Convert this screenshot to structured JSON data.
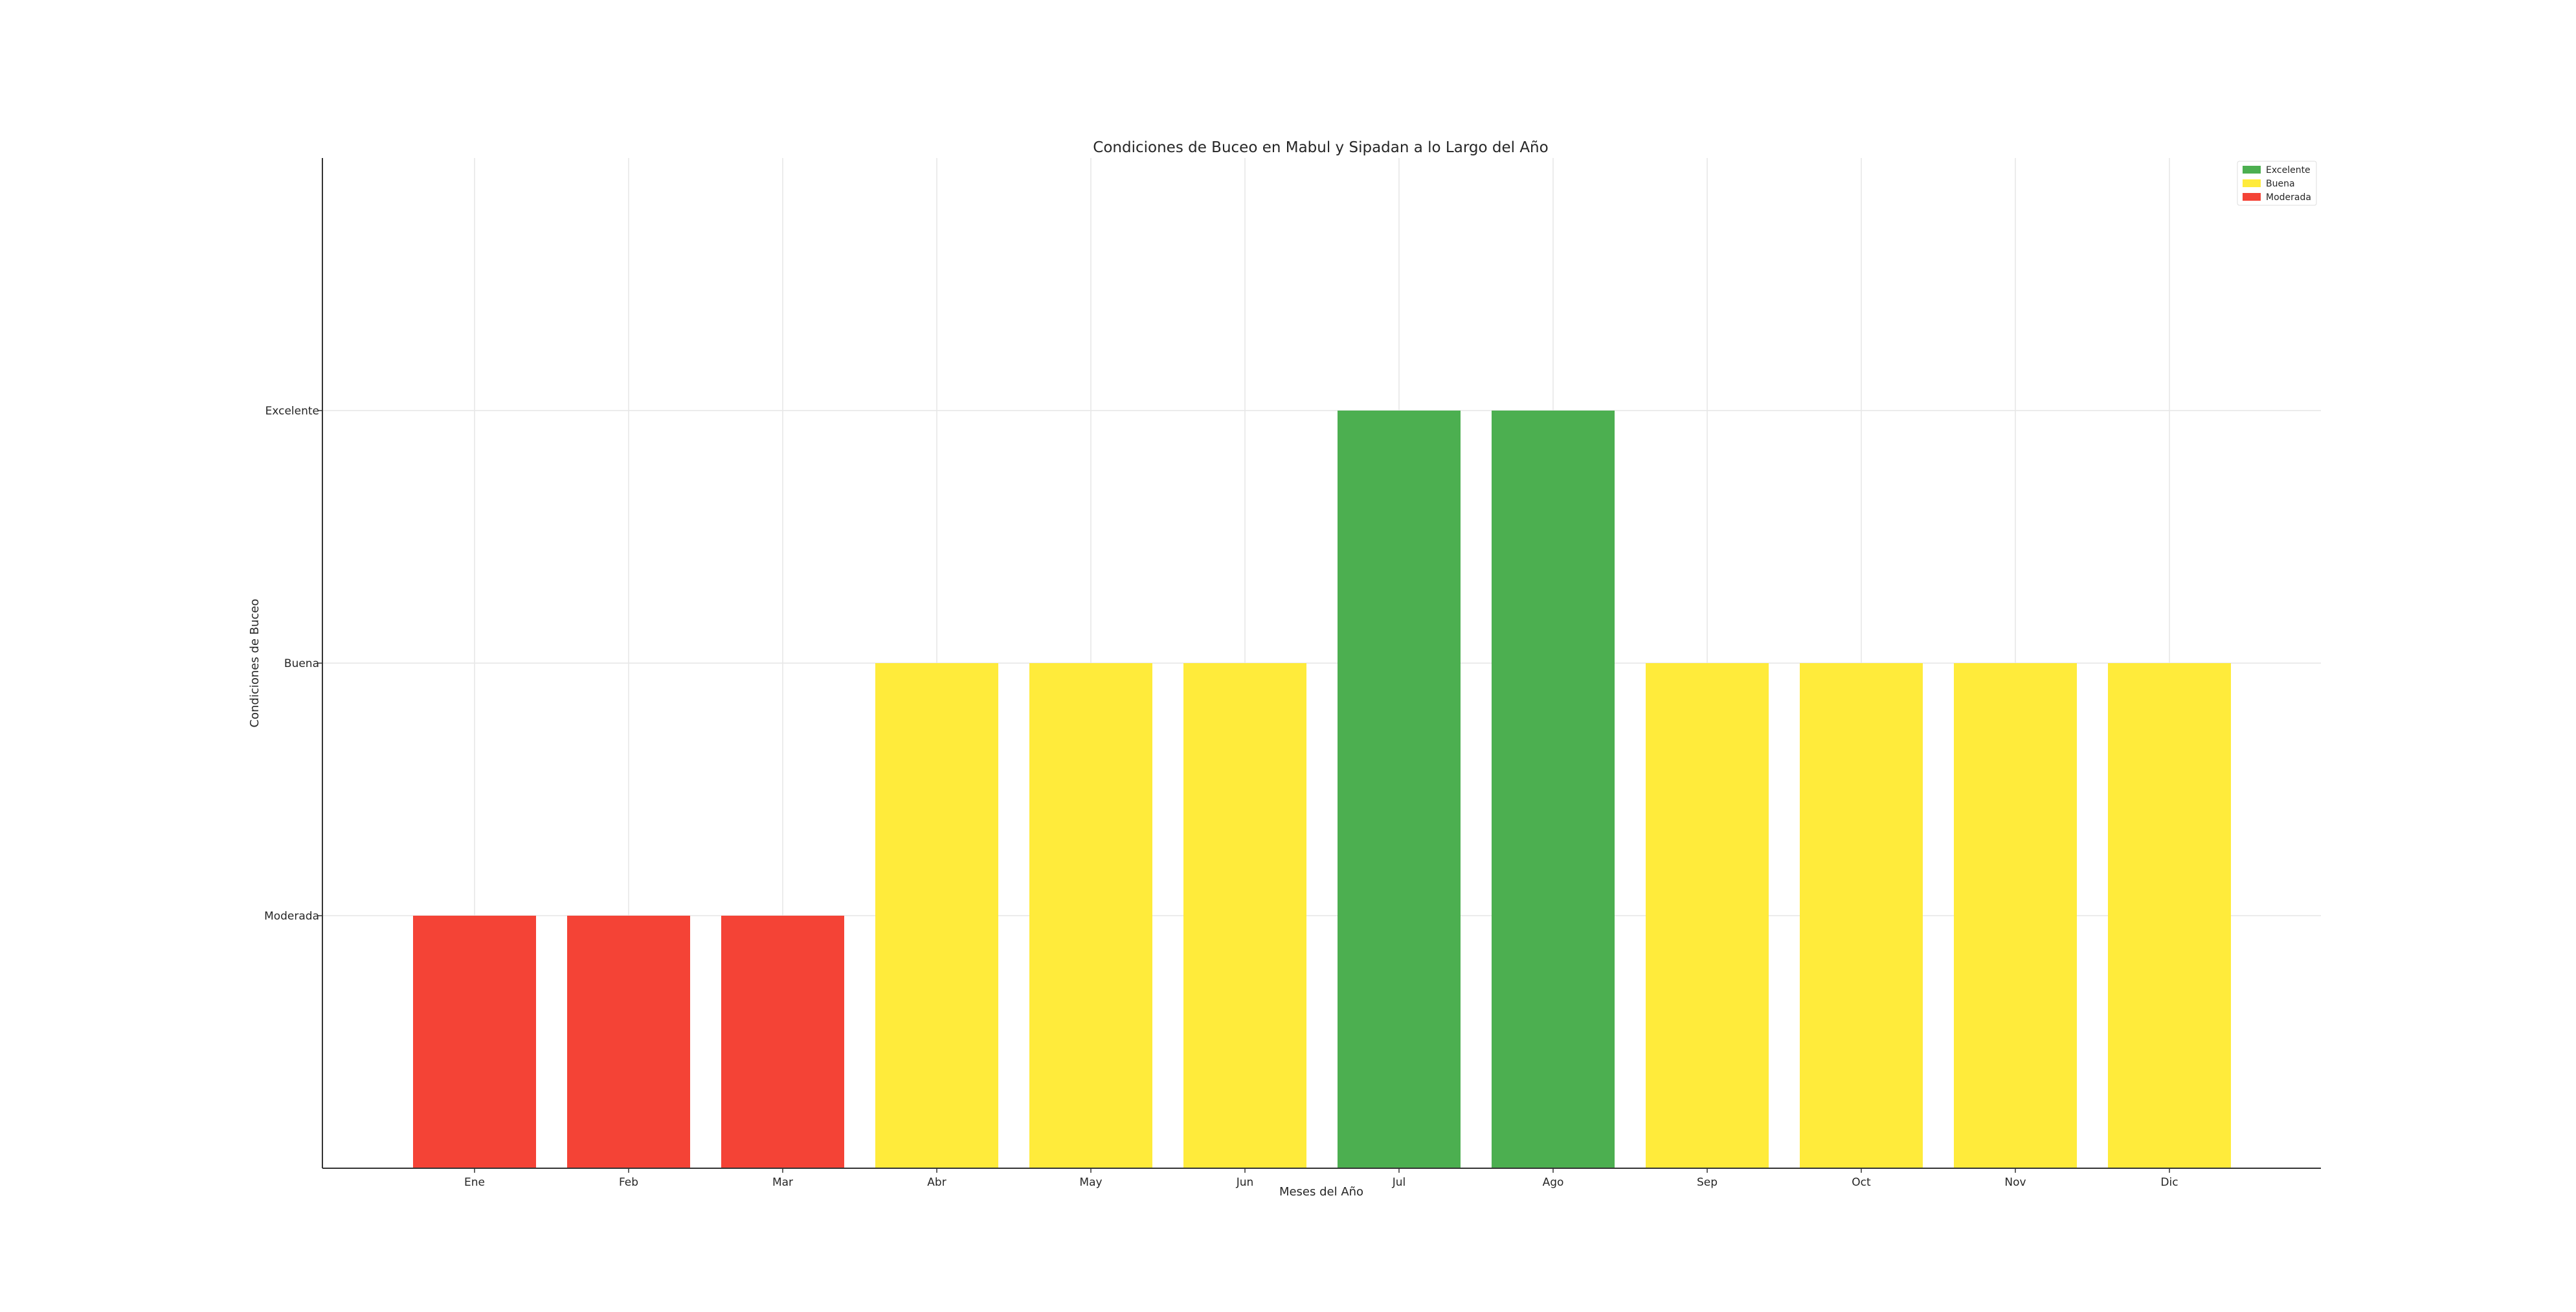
{
  "chart_data": {
    "type": "bar",
    "title": "Condiciones de Buceo en Mabul y Sipadan a lo Largo del Año",
    "xlabel": "Meses del Año",
    "ylabel": "Condiciones de Buceo",
    "categories": [
      "Ene",
      "Feb",
      "Mar",
      "Abr",
      "May",
      "Jun",
      "Jul",
      "Ago",
      "Sep",
      "Oct",
      "Nov",
      "Dic"
    ],
    "values": [
      1,
      1,
      1,
      2,
      2,
      2,
      3,
      3,
      2,
      2,
      2,
      2
    ],
    "value_labels": [
      "Moderada",
      "Moderada",
      "Moderada",
      "Buena",
      "Buena",
      "Buena",
      "Excelente",
      "Excelente",
      "Buena",
      "Buena",
      "Buena",
      "Buena"
    ],
    "ylim": [
      0,
      4
    ],
    "yticks": [
      {
        "value": 1,
        "label": "Moderada"
      },
      {
        "value": 2,
        "label": "Buena"
      },
      {
        "value": 3,
        "label": "Excelente"
      }
    ],
    "colors": {
      "Excelente": "#4caf50",
      "Buena": "#ffeb3b",
      "Moderada": "#f44336"
    },
    "legend": {
      "placement": "top-right",
      "entries": [
        {
          "label": "Excelente",
          "color": "#4caf50"
        },
        {
          "label": "Buena",
          "color": "#ffeb3b"
        },
        {
          "label": "Moderada",
          "color": "#f44336"
        }
      ]
    },
    "grid": true
  }
}
